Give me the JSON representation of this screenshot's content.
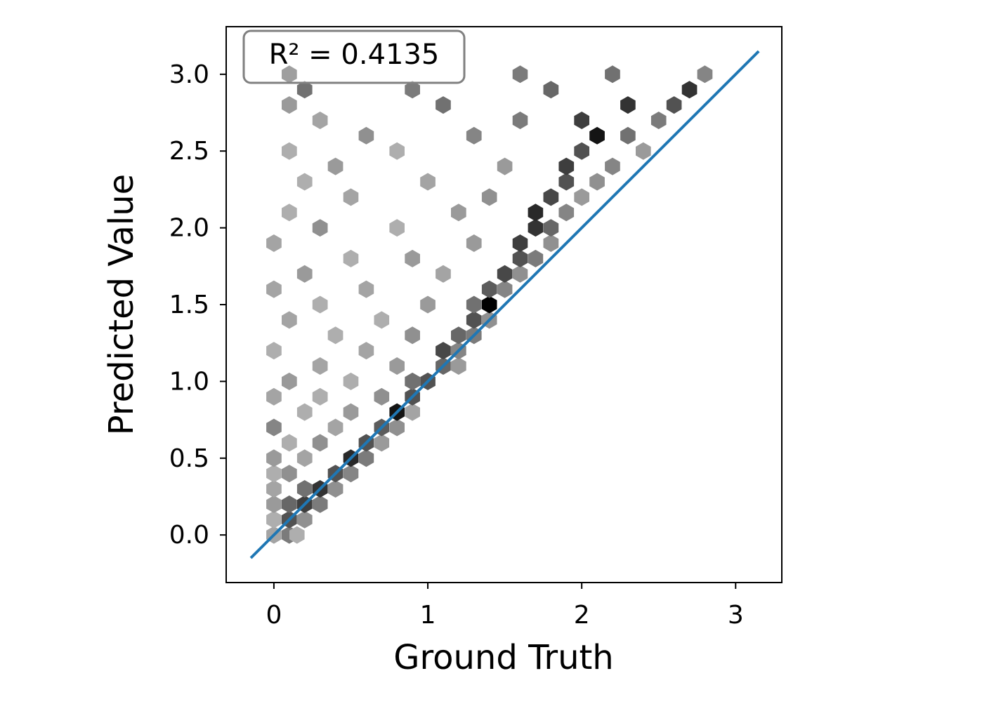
{
  "chart_data": {
    "type": "hexbin",
    "x_label": "Ground Truth",
    "y_label": "Predicted Value",
    "annotation": "R² = 0.4135",
    "cmap": "Greys",
    "x": [
      0.0,
      0.1,
      0.15,
      0.0,
      0.1,
      0.2,
      0.0,
      0.1,
      0.2,
      0.3,
      0.0,
      0.2,
      0.3,
      0.4,
      0.0,
      0.1,
      0.4,
      0.5,
      0.0,
      0.2,
      0.5,
      0.6,
      0.1,
      0.3,
      0.6,
      0.7,
      0.0,
      0.4,
      0.7,
      0.8,
      0.2,
      0.5,
      0.8,
      0.9,
      0.0,
      0.3,
      0.7,
      0.9,
      0.1,
      0.5,
      0.9,
      1.0,
      0.3,
      0.8,
      1.1,
      1.2,
      0.0,
      0.6,
      1.1,
      1.2,
      0.4,
      0.9,
      1.2,
      1.3,
      0.1,
      0.7,
      1.3,
      1.4,
      0.3,
      1.0,
      1.4,
      1.3,
      0.0,
      0.6,
      1.4,
      1.5,
      0.2,
      1.1,
      1.5,
      1.6,
      0.5,
      0.9,
      1.6,
      1.7,
      0.0,
      1.3,
      1.6,
      1.8,
      0.3,
      0.8,
      1.7,
      1.8,
      0.1,
      1.2,
      1.7,
      1.9,
      0.5,
      1.4,
      1.8,
      2.0,
      0.2,
      1.0,
      1.9,
      2.1,
      0.4,
      1.5,
      1.9,
      2.2,
      0.1,
      0.8,
      2.0,
      2.4,
      0.6,
      1.3,
      2.1,
      2.3,
      0.3,
      1.6,
      2.0,
      2.5,
      0.1,
      1.1,
      2.3,
      2.6,
      0.2,
      0.9,
      1.8,
      2.7,
      0.1,
      1.6,
      2.2,
      2.8
    ],
    "y": [
      0.0,
      0.0,
      0.0,
      0.1,
      0.1,
      0.1,
      0.2,
      0.2,
      0.2,
      0.2,
      0.3,
      0.3,
      0.3,
      0.3,
      0.4,
      0.4,
      0.4,
      0.4,
      0.5,
      0.5,
      0.5,
      0.5,
      0.6,
      0.6,
      0.6,
      0.6,
      0.7,
      0.7,
      0.7,
      0.7,
      0.8,
      0.8,
      0.8,
      0.8,
      0.9,
      0.9,
      0.9,
      0.9,
      1.0,
      1.0,
      1.0,
      1.0,
      1.1,
      1.1,
      1.1,
      1.1,
      1.2,
      1.2,
      1.2,
      1.2,
      1.3,
      1.3,
      1.3,
      1.3,
      1.4,
      1.4,
      1.4,
      1.4,
      1.5,
      1.5,
      1.5,
      1.5,
      1.6,
      1.6,
      1.6,
      1.6,
      1.7,
      1.7,
      1.7,
      1.7,
      1.8,
      1.8,
      1.8,
      1.8,
      1.9,
      1.9,
      1.9,
      1.9,
      2.0,
      2.0,
      2.0,
      2.0,
      2.1,
      2.1,
      2.1,
      2.1,
      2.2,
      2.2,
      2.2,
      2.2,
      2.3,
      2.3,
      2.3,
      2.3,
      2.4,
      2.4,
      2.4,
      2.4,
      2.5,
      2.5,
      2.5,
      2.5,
      2.6,
      2.6,
      2.6,
      2.6,
      2.7,
      2.7,
      2.7,
      2.7,
      2.8,
      2.8,
      2.8,
      2.8,
      2.9,
      2.9,
      2.9,
      2.9,
      3.0,
      3.0,
      3.0,
      3.0
    ],
    "counts": [
      4,
      8,
      3,
      3,
      12,
      6,
      5,
      10,
      14,
      8,
      4,
      9,
      15,
      6,
      3,
      6,
      12,
      7,
      5,
      4,
      16,
      8,
      3,
      6,
      12,
      5,
      7,
      4,
      11,
      6,
      3,
      5,
      18,
      4,
      4,
      3,
      6,
      12,
      5,
      3,
      9,
      12,
      4,
      5,
      10,
      5,
      3,
      4,
      13,
      7,
      3,
      6,
      10,
      8,
      4,
      3,
      12,
      6,
      3,
      5,
      20,
      9,
      4,
      4,
      11,
      7,
      5,
      4,
      13,
      6,
      3,
      5,
      12,
      8,
      4,
      5,
      14,
      6,
      6,
      3,
      15,
      10,
      3,
      5,
      16,
      7,
      4,
      6,
      13,
      5,
      3,
      4,
      12,
      6,
      5,
      5,
      14,
      7,
      3,
      3,
      12,
      5,
      6,
      7,
      18,
      9,
      4,
      8,
      14,
      8,
      5,
      9,
      15,
      12,
      9,
      8,
      10,
      15,
      14,
      8,
      9,
      7
    ],
    "fit_line": {
      "color": "#1f77b4",
      "x": [
        -0.15,
        3.15
      ],
      "y": [
        -0.15,
        3.15
      ]
    },
    "xlim": [
      -0.31,
      3.3
    ],
    "ylim": [
      -0.31,
      3.31
    ],
    "xticks": [
      0,
      1,
      2,
      3
    ],
    "yticks": [
      {
        "value": 0,
        "label": "0.0"
      },
      0.5,
      {
        "value": 1,
        "label": "1.0"
      },
      1.5,
      {
        "value": 2,
        "label": "2.0"
      },
      2.5,
      {
        "value": 3,
        "label": "3.0"
      }
    ]
  }
}
